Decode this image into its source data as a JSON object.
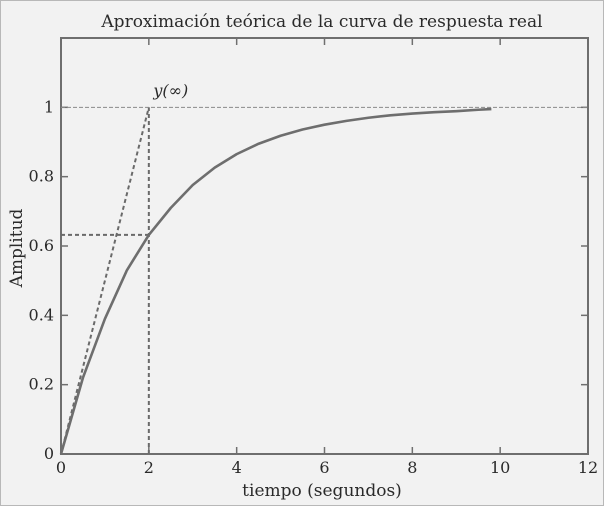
{
  "chart_data": {
    "type": "line",
    "title": "Aproximación teórica de la curva de respuesta real",
    "xlabel": "tiempo (segundos)",
    "ylabel": "Amplitud",
    "xlim": [
      0,
      12
    ],
    "ylim": [
      0,
      1.2
    ],
    "x_ticks": [
      0,
      2,
      4,
      6,
      8,
      10,
      12
    ],
    "y_ticks": [
      0,
      0.2,
      0.4,
      0.6,
      0.8,
      1
    ],
    "x_tick_labels": [
      "0",
      "2",
      "4",
      "6",
      "8",
      "10",
      "12"
    ],
    "y_tick_labels": [
      "0",
      "0.2",
      "0.4",
      "0.6",
      "0.8",
      "1"
    ],
    "grid": false,
    "series": [
      {
        "style": "solid",
        "x": [
          0,
          0.5,
          1,
          1.5,
          2,
          2.5,
          3,
          3.5,
          4,
          4.5,
          5,
          5.5,
          6,
          6.5,
          7,
          7.5,
          8,
          8.5,
          9,
          9.5,
          9.8
        ],
        "y": [
          0,
          0.22,
          0.39,
          0.53,
          0.632,
          0.71,
          0.776,
          0.826,
          0.865,
          0.895,
          0.918,
          0.936,
          0.95,
          0.961,
          0.97,
          0.977,
          0.982,
          0.986,
          0.989,
          0.993,
          0.995
        ]
      }
    ],
    "reference_lines": [
      {
        "kind": "tangent",
        "style": "dashed",
        "x": [
          0,
          2
        ],
        "y": [
          0,
          1
        ]
      },
      {
        "kind": "vertical",
        "style": "dashed",
        "x": [
          2,
          2
        ],
        "y": [
          0,
          1
        ]
      },
      {
        "kind": "horizontal",
        "style": "dashed",
        "x": [
          0,
          2
        ],
        "y": [
          0.632,
          0.632
        ]
      },
      {
        "kind": "horizontal",
        "style": "thin-dashed",
        "x": [
          0,
          12
        ],
        "y": [
          1,
          1
        ]
      }
    ],
    "annotations": [
      {
        "text": "y(∞)",
        "x": 2.5,
        "y": 1.05
      }
    ]
  }
}
